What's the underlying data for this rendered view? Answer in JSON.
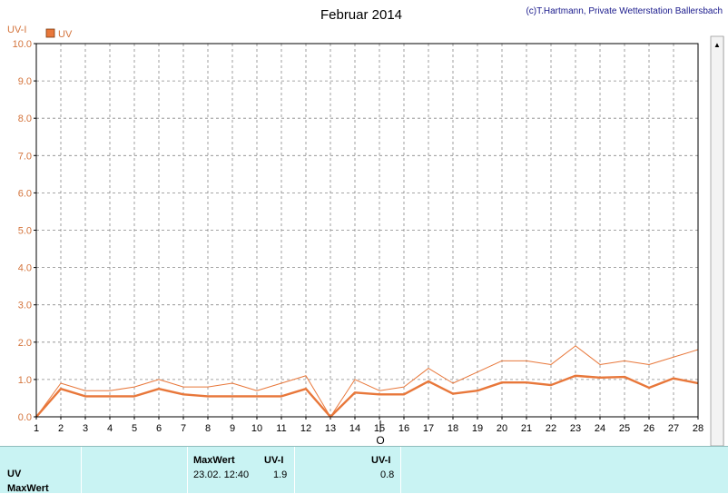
{
  "chart_data": {
    "type": "line",
    "title": "Februar 2014",
    "credit": "(c)T.Hartmann, Private Wetterstation Ballersbach",
    "ylabel": "UV-I",
    "ylim": [
      0,
      10
    ],
    "yticks": [
      "0.0",
      "1.0",
      "2.0",
      "3.0",
      "4.0",
      "5.0",
      "6.0",
      "7.0",
      "8.0",
      "9.0",
      "10.0"
    ],
    "x": [
      "1",
      "2",
      "3",
      "4",
      "5",
      "6",
      "7",
      "8",
      "9",
      "10",
      "11",
      "12",
      "13",
      "14",
      "15",
      "16",
      "17",
      "18",
      "19",
      "20",
      "21",
      "22",
      "23",
      "24",
      "25",
      "26",
      "27",
      "28"
    ],
    "legend": [
      "UV"
    ],
    "color": "#e8773a",
    "series": [
      {
        "name": "UV",
        "role": "max",
        "values": [
          0.0,
          0.9,
          0.7,
          0.7,
          0.8,
          1.0,
          0.8,
          0.8,
          0.9,
          0.7,
          0.9,
          1.1,
          0.0,
          1.0,
          0.7,
          0.8,
          1.3,
          0.9,
          1.2,
          1.5,
          1.5,
          1.4,
          1.9,
          1.4,
          1.5,
          1.4,
          1.6,
          1.8
        ]
      },
      {
        "name": "UV",
        "role": "mean",
        "values": [
          0.0,
          0.75,
          0.55,
          0.55,
          0.55,
          0.75,
          0.6,
          0.55,
          0.55,
          0.55,
          0.55,
          0.75,
          0.0,
          0.65,
          0.6,
          0.6,
          0.95,
          0.62,
          0.7,
          0.92,
          0.92,
          0.85,
          1.1,
          1.05,
          1.07,
          0.78,
          1.03,
          0.9
        ]
      }
    ]
  },
  "marker_label": "O",
  "footer": {
    "row1_label": "UV",
    "row2_label": "MaxWert",
    "maxwert_header": "MaxWert",
    "uvi_header": "UV-I",
    "maxwert_time": "23.02.  12:40",
    "maxwert_value": "1.9",
    "uvi_header2": "UV-I",
    "current_value": "0.8"
  }
}
